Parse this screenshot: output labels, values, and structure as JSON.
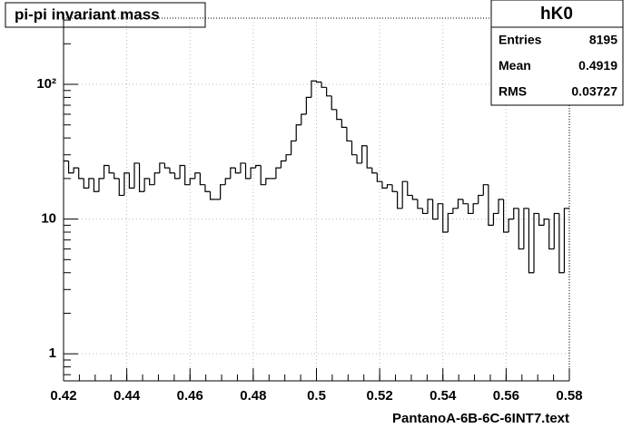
{
  "chart_data": {
    "type": "histogram",
    "title": "pi-pi invariant mass",
    "x_label": "PantanoA-6B-6C-6INT7.text",
    "stats": {
      "name": "hK0",
      "rows": [
        {
          "label": "Entries",
          "value": 8195
        },
        {
          "label": "Mean",
          "value": 0.4919
        },
        {
          "label": "RMS",
          "value": 0.03727
        }
      ]
    },
    "bins": [
      0.42,
      0.4216,
      0.4232,
      0.4248,
      0.4264,
      0.428,
      0.4296,
      0.4312,
      0.4328,
      0.4344,
      0.436,
      0.4376,
      0.4392,
      0.4408,
      0.4424,
      0.444,
      0.4456,
      0.4472,
      0.4488,
      0.4504,
      0.452,
      0.4536,
      0.4552,
      0.4568,
      0.4584,
      0.46,
      0.4616,
      0.4632,
      0.4648,
      0.4664,
      0.468,
      0.4696,
      0.4712,
      0.4728,
      0.4744,
      0.476,
      0.4776,
      0.4792,
      0.4808,
      0.4824,
      0.484,
      0.4856,
      0.4872,
      0.4888,
      0.4904,
      0.492,
      0.4936,
      0.4952,
      0.4968,
      0.4984,
      0.5,
      0.5016,
      0.5032,
      0.5048,
      0.5064,
      0.508,
      0.5096,
      0.5112,
      0.5128,
      0.5144,
      0.516,
      0.5176,
      0.5192,
      0.5208,
      0.5224,
      0.524,
      0.5256,
      0.5272,
      0.5288,
      0.5304,
      0.532,
      0.5336,
      0.5352,
      0.5368,
      0.5384,
      0.54,
      0.5416,
      0.5432,
      0.5448,
      0.5464,
      0.548,
      0.5496,
      0.5512,
      0.5528,
      0.5544,
      0.556,
      0.5576,
      0.5592,
      0.5608,
      0.5624,
      0.564,
      0.5656,
      0.5672,
      0.5688,
      0.5704,
      0.572,
      0.5736,
      0.5752,
      0.5768,
      0.5784,
      0.58
    ],
    "values": [
      27,
      22,
      24,
      20,
      17,
      20,
      16,
      20,
      25,
      22,
      20,
      15,
      22,
      17,
      26,
      16,
      20,
      18,
      22,
      26,
      24,
      22,
      20,
      25,
      18,
      20,
      22,
      18,
      16,
      14,
      14,
      18,
      20,
      24,
      22,
      26,
      20,
      24,
      25,
      18,
      20,
      20,
      24,
      27,
      30,
      38,
      50,
      60,
      80,
      106,
      104,
      95,
      82,
      65,
      55,
      48,
      38,
      30,
      26,
      35,
      24,
      22,
      19,
      17,
      18,
      16,
      12,
      19,
      15,
      14,
      12,
      11,
      14,
      10,
      13,
      8,
      11,
      12,
      14,
      13,
      11,
      13,
      15,
      18,
      9,
      11,
      14,
      8,
      10,
      12,
      6,
      12,
      4,
      11,
      9,
      10,
      6,
      11,
      4,
      12
    ],
    "color": "#000000",
    "xlim": [
      0.42,
      0.58
    ],
    "xticks": [
      0.42,
      0.44,
      0.46,
      0.48,
      0.5,
      0.52,
      0.54,
      0.56,
      0.58
    ],
    "ylim": [
      0.63,
      310
    ],
    "yticks": [
      1,
      10,
      {
        "value": 100,
        "label": "10²"
      }
    ],
    "log_y": true,
    "grid": true
  }
}
